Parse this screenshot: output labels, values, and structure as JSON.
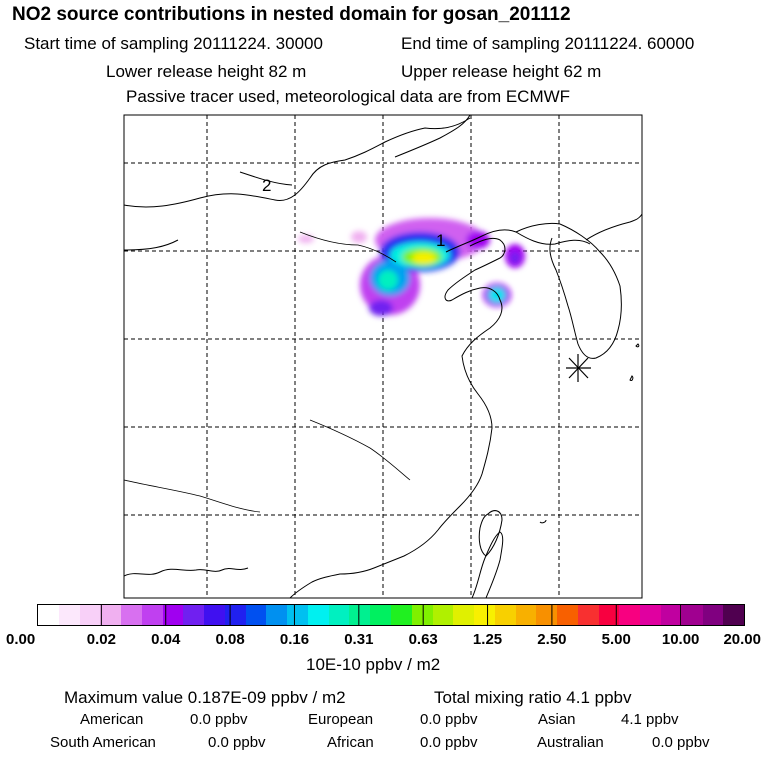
{
  "header": {
    "title": "NO2 source contributions in nested domain for gosan_201112",
    "start_label": "Start time of sampling 20111224. 30000",
    "end_label": "End time of sampling 20111224. 60000",
    "lower_height": "Lower release height   82 m",
    "upper_height": "Upper release height   62 m",
    "tracer_note": "Passive tracer used, meteorological data are from ECMWF"
  },
  "map": {
    "labels": {
      "region_2": "2",
      "region_1": "1"
    },
    "station_marker": "asterisk-station-icon"
  },
  "colorbar": {
    "colors": [
      "#ffffff",
      "#fce8fc",
      "#f8d0f8",
      "#f0b0f0",
      "#d870f0",
      "#c040f0",
      "#a000f0",
      "#7020f0",
      "#4010f0",
      "#2020f0",
      "#0050f0",
      "#0090f0",
      "#00c0f0",
      "#00f0f0",
      "#00f0c0",
      "#00f090",
      "#00f060",
      "#20f020",
      "#80f000",
      "#b0f000",
      "#e0f000",
      "#f8f000",
      "#f8d000",
      "#f8b000",
      "#f89000",
      "#f86000",
      "#f83030",
      "#f80040",
      "#f80080",
      "#e000a0",
      "#c000a0",
      "#a00090",
      "#800080",
      "#500050"
    ],
    "tick_labels": [
      "0.00",
      "0.02",
      "0.04",
      "0.08",
      "0.16",
      "0.31",
      "0.63",
      "1.25",
      "2.50",
      "5.00",
      "10.00",
      "20.00"
    ],
    "units": "10E-10 ppbv / m2"
  },
  "summary": {
    "maximum": "Maximum value  0.187E-09 ppbv / m2",
    "total": "Total mixing ratio       4.1 ppbv",
    "american_label": "American",
    "american_value": "0.0 ppbv",
    "european_label": "European",
    "european_value": "0.0 ppbv",
    "asian_label": "Asian",
    "asian_value": "4.1 ppbv",
    "south_american_label": "South American",
    "south_american_value": "0.0 ppbv",
    "african_label": "African",
    "african_value": "0.0 ppbv",
    "australian_label": "Australian",
    "australian_value": "0.0 ppbv"
  }
}
